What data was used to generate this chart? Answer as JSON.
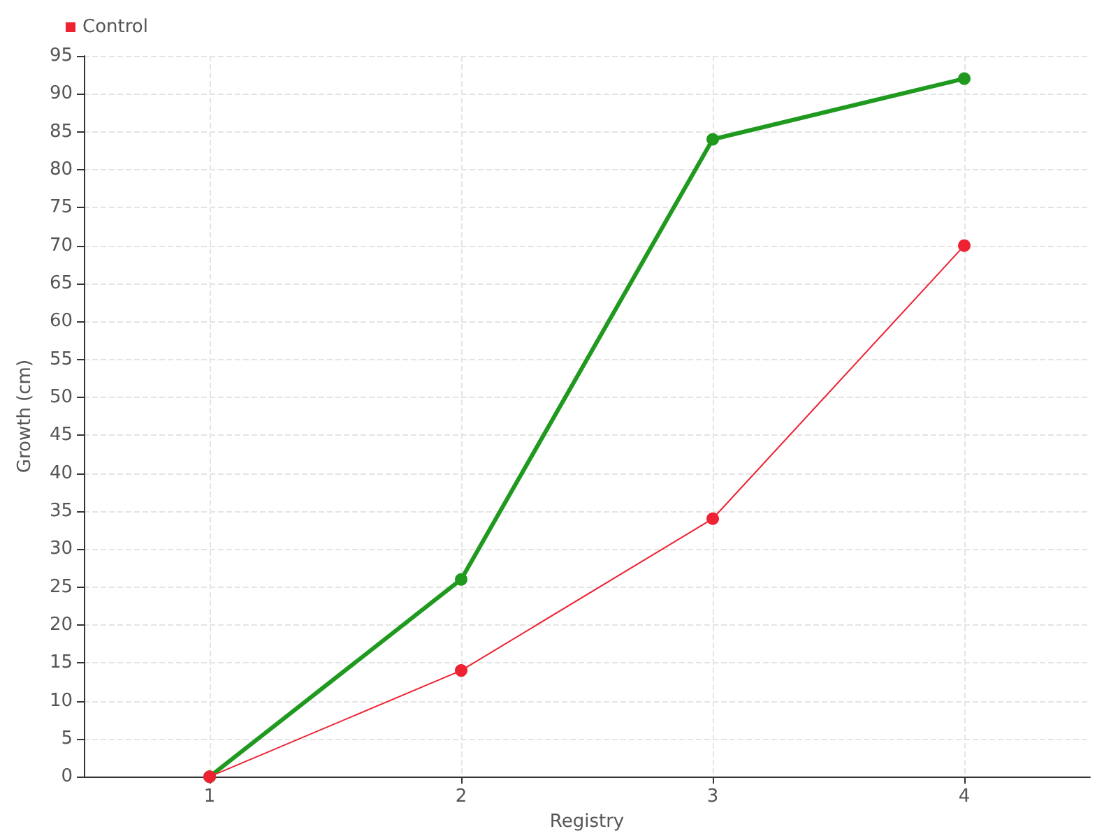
{
  "chart_data": {
    "type": "line",
    "xlabel": "Registry",
    "ylabel": "Growth (cm)",
    "x": [
      1,
      2,
      3,
      4
    ],
    "xlim": [
      0.5,
      4.5
    ],
    "xticks": [
      1,
      2,
      3,
      4
    ],
    "ylim": [
      0,
      95
    ],
    "yticks": [
      0,
      5,
      10,
      15,
      20,
      25,
      30,
      35,
      40,
      45,
      50,
      55,
      60,
      65,
      70,
      75,
      80,
      85,
      90,
      95
    ],
    "series": [
      {
        "color": "#1f9a1f",
        "values": [
          0,
          26,
          84,
          92
        ]
      },
      {
        "name": "Control",
        "color": "#ee2233",
        "values": [
          0,
          14,
          34,
          70
        ]
      }
    ],
    "grid": true,
    "legend": "top left",
    "marker": "circle",
    "line_style": "solid"
  }
}
